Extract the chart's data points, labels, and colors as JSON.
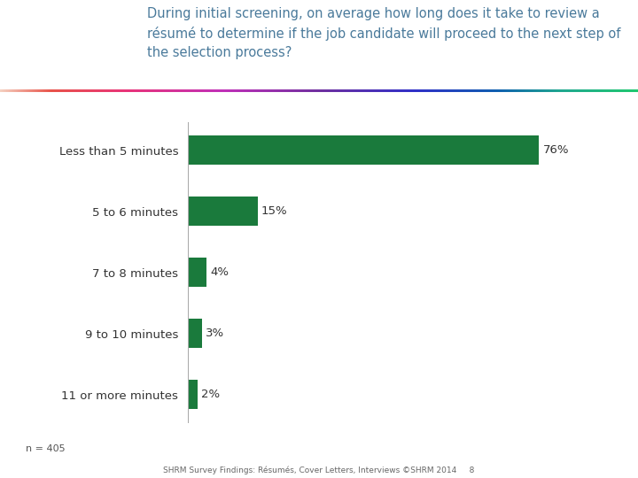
{
  "categories": [
    "Less than 5 minutes",
    "5 to 6 minutes",
    "7 to 8 minutes",
    "9 to 10 minutes",
    "11 or more minutes"
  ],
  "values": [
    76,
    15,
    4,
    3,
    2
  ],
  "labels": [
    "76%",
    "15%",
    "4%",
    "3%",
    "2%"
  ],
  "bar_color": "#1a7a3c",
  "background_color": "#ffffff",
  "title_text": "During initial screening, on average how long does it take to review a\nrésumé to determine if the job candidate will proceed to the next step of\nthe selection process?",
  "title_color": "#4a7a9b",
  "title_fontsize": 10.5,
  "category_fontsize": 9.5,
  "label_fontsize": 9.5,
  "n_text": "n = 405",
  "footer_text": "SHRM Survey Findings: Résumés, Cover Letters, Interviews ©SHRM 2014     8",
  "footer_fontsize": 6.5,
  "n_fontsize": 8,
  "xlim": [
    0,
    85
  ],
  "bar_height": 0.48,
  "shrm_box_color": "#2b6587",
  "dark_blue_bar": "#1a4f6e",
  "rainbow_gradient_stops": [
    [
      0.0,
      "#f5d0c0"
    ],
    [
      0.08,
      "#e8534a"
    ],
    [
      0.2,
      "#e8347a"
    ],
    [
      0.35,
      "#c030b8"
    ],
    [
      0.5,
      "#7030a0"
    ],
    [
      0.65,
      "#3030c8"
    ],
    [
      0.78,
      "#1060b0"
    ],
    [
      0.88,
      "#20a890"
    ],
    [
      1.0,
      "#20c870"
    ]
  ]
}
